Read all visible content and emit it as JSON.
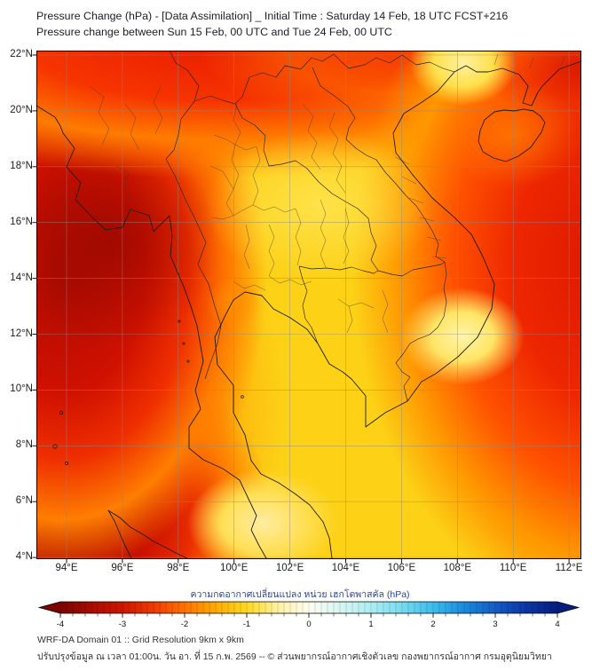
{
  "title": {
    "line1": "Pressure Change (hPa) - [Data Assimilation] _ Initial Time : Saturday 14 Feb, 18 UTC FCST+216",
    "line2": "Pressure change between Sun 15 Feb, 00 UTC and Tue 24 Feb, 00 UTC"
  },
  "map": {
    "y_axis_ticks": [
      "22°N",
      "20°N",
      "18°N",
      "16°N",
      "14°N",
      "12°N",
      "10°N",
      "8°N",
      "6°N",
      "4°N"
    ],
    "x_axis_ticks": [
      "94°E",
      "96°E",
      "98°E",
      "100°E",
      "102°E",
      "104°E",
      "106°E",
      "108°E",
      "110°E",
      "112°E"
    ],
    "field_approx_hpa": {
      "bay_of_bengal_west": "-3 to -3.5",
      "south_china_sea_east": "-2.5 to -3",
      "indochina_interior": "-1 to -1.5",
      "south_vietnam_coast_spot": "-0.5",
      "gulf_of_thailand": "-1 to -1.5"
    }
  },
  "colorbar": {
    "label": "ความกดอากาศเปลี่ยนแปลง หน่วย เฮกโตพาสคัล (hPa)",
    "ticks": [
      "-4",
      "-3",
      "-2",
      "-1",
      "0",
      "1",
      "2",
      "3",
      "4"
    ],
    "min": -4,
    "max": 4,
    "stops": [
      {
        "v": -4.0,
        "c": "#7a0403"
      },
      {
        "v": -3.5,
        "c": "#a80d00"
      },
      {
        "v": -3.0,
        "c": "#cf1600"
      },
      {
        "v": -2.5,
        "c": "#ef3b00"
      },
      {
        "v": -2.0,
        "c": "#ff7300"
      },
      {
        "v": -1.5,
        "c": "#ffab00"
      },
      {
        "v": -1.0,
        "c": "#ffd91e"
      },
      {
        "v": -0.5,
        "c": "#fff1a0"
      },
      {
        "v": 0.0,
        "c": "#fffdf2"
      },
      {
        "v": 0.5,
        "c": "#d8f6f2"
      },
      {
        "v": 1.0,
        "c": "#aceef2"
      },
      {
        "v": 1.5,
        "c": "#76dcf0"
      },
      {
        "v": 2.0,
        "c": "#3cbcee"
      },
      {
        "v": 2.5,
        "c": "#1b8ade"
      },
      {
        "v": 3.0,
        "c": "#135cc6"
      },
      {
        "v": 3.5,
        "c": "#0b36a6"
      },
      {
        "v": 4.0,
        "c": "#071d7e"
      }
    ]
  },
  "footer": {
    "line1": "WRF-DA Domain 01 :: Grid Resolution 9km x 9km",
    "line2": "ปรับปรุงข้อมูล ณ เวลา 01:00น. วัน อา. ที่ 15 ก.พ. 2569 -- © ส่วนพยากรณ์อากาศเชิงตัวเลข กองพยากรณ์อากาศ กรมอุตุนิยมวิทยา"
  }
}
